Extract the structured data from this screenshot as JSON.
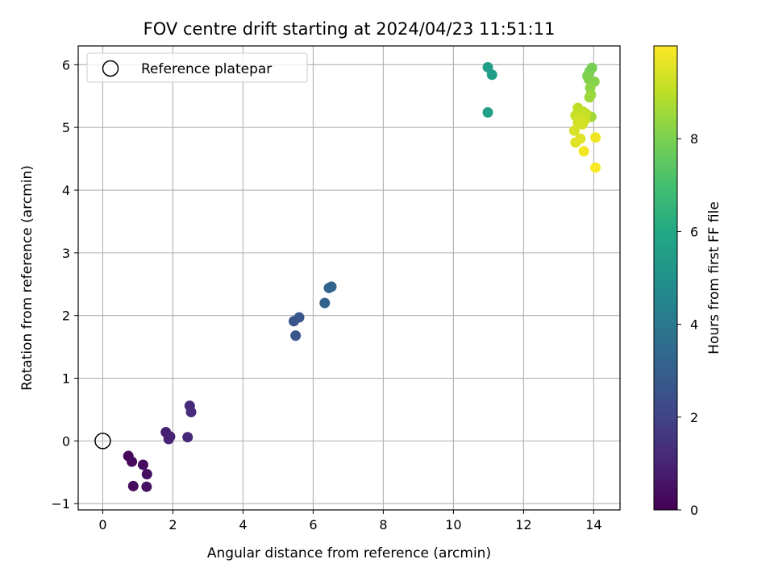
{
  "chart_data": {
    "type": "scatter",
    "title": "FOV centre drift starting at 2024/04/23 11:51:11",
    "xlabel": "Angular distance from reference (arcmin)",
    "ylabel": "Rotation from reference (arcmin)",
    "xlim": [
      -0.7,
      14.75
    ],
    "ylim": [
      -1.1,
      6.3
    ],
    "x_ticks": [
      0,
      2,
      4,
      6,
      8,
      10,
      12,
      14
    ],
    "y_ticks": [
      -1,
      0,
      1,
      2,
      3,
      4,
      5,
      6
    ],
    "grid": true,
    "legend": {
      "placement": "top-left",
      "entries": [
        "Reference platepar"
      ]
    },
    "reference": {
      "x": 0,
      "y": 0,
      "label": "Reference platepar"
    },
    "colorbar": {
      "label": "Hours from first FF file",
      "min": 0,
      "max": 10,
      "ticks": [
        0,
        2,
        4,
        6,
        8
      ],
      "colormap": "viridis"
    },
    "points": [
      {
        "x": 0.73,
        "y": -0.24,
        "t": 0.2
      },
      {
        "x": 0.83,
        "y": -0.33,
        "t": 0.25
      },
      {
        "x": 0.87,
        "y": -0.72,
        "t": 0.3
      },
      {
        "x": 1.15,
        "y": -0.38,
        "t": 0.35
      },
      {
        "x": 1.26,
        "y": -0.53,
        "t": 0.4
      },
      {
        "x": 1.25,
        "y": -0.73,
        "t": 0.45
      },
      {
        "x": 1.8,
        "y": 0.14,
        "t": 0.85
      },
      {
        "x": 1.88,
        "y": 0.03,
        "t": 0.9
      },
      {
        "x": 1.92,
        "y": 0.07,
        "t": 0.95
      },
      {
        "x": 2.42,
        "y": 0.06,
        "t": 1.1
      },
      {
        "x": 2.48,
        "y": 0.56,
        "t": 1.2
      },
      {
        "x": 2.52,
        "y": 0.46,
        "t": 1.25
      },
      {
        "x": 5.45,
        "y": 1.91,
        "t": 2.6
      },
      {
        "x": 5.5,
        "y": 1.68,
        "t": 2.65
      },
      {
        "x": 5.6,
        "y": 1.97,
        "t": 2.7
      },
      {
        "x": 6.33,
        "y": 2.2,
        "t": 3.15
      },
      {
        "x": 6.45,
        "y": 2.44,
        "t": 3.2
      },
      {
        "x": 6.52,
        "y": 2.46,
        "t": 3.25
      },
      {
        "x": 10.98,
        "y": 5.96,
        "t": 5.5
      },
      {
        "x": 11.1,
        "y": 5.84,
        "t": 5.55
      },
      {
        "x": 10.98,
        "y": 5.24,
        "t": 5.6
      },
      {
        "x": 13.88,
        "y": 5.89,
        "t": 7.9
      },
      {
        "x": 13.95,
        "y": 5.95,
        "t": 7.95
      },
      {
        "x": 13.82,
        "y": 5.82,
        "t": 8.05
      },
      {
        "x": 13.86,
        "y": 5.77,
        "t": 8.1
      },
      {
        "x": 14.02,
        "y": 5.73,
        "t": 8.15
      },
      {
        "x": 13.9,
        "y": 5.63,
        "t": 8.25
      },
      {
        "x": 13.92,
        "y": 5.52,
        "t": 8.4
      },
      {
        "x": 13.88,
        "y": 5.48,
        "t": 8.5
      },
      {
        "x": 13.93,
        "y": 5.17,
        "t": 8.6
      },
      {
        "x": 13.55,
        "y": 5.31,
        "t": 9.0
      },
      {
        "x": 13.7,
        "y": 5.25,
        "t": 9.05
      },
      {
        "x": 13.78,
        "y": 5.22,
        "t": 9.1
      },
      {
        "x": 13.48,
        "y": 5.19,
        "t": 9.15
      },
      {
        "x": 13.62,
        "y": 5.16,
        "t": 9.2
      },
      {
        "x": 13.75,
        "y": 5.12,
        "t": 9.25
      },
      {
        "x": 13.55,
        "y": 5.08,
        "t": 9.3
      },
      {
        "x": 13.68,
        "y": 5.05,
        "t": 9.35
      },
      {
        "x": 13.45,
        "y": 4.95,
        "t": 9.4
      },
      {
        "x": 13.62,
        "y": 4.82,
        "t": 9.5
      },
      {
        "x": 13.48,
        "y": 4.76,
        "t": 9.55
      },
      {
        "x": 14.05,
        "y": 4.84,
        "t": 9.8
      },
      {
        "x": 13.72,
        "y": 4.62,
        "t": 9.85
      },
      {
        "x": 14.05,
        "y": 4.36,
        "t": 9.95
      }
    ]
  }
}
